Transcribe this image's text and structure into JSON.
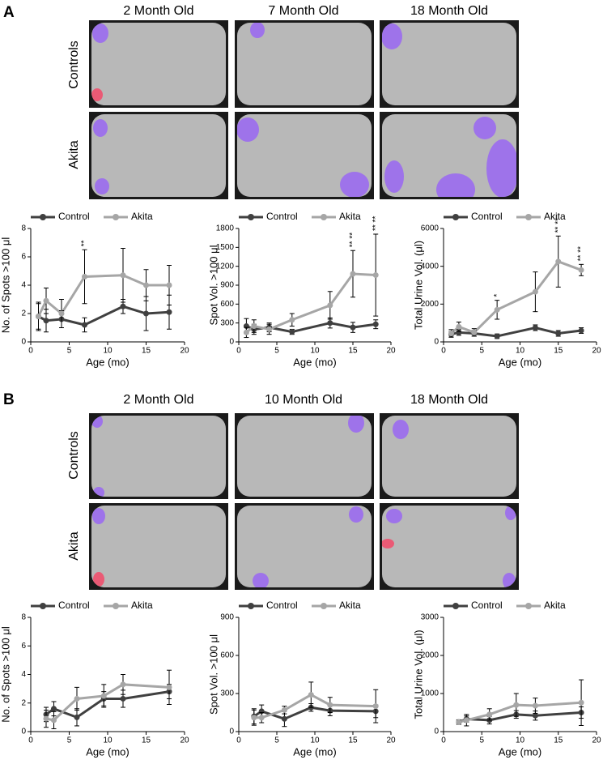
{
  "panels": [
    {
      "label": "A",
      "columns": [
        "2 Month Old",
        "7 Month Old",
        "18 Month Old"
      ],
      "rows": [
        "Controls",
        "Akita"
      ]
    },
    {
      "label": "B",
      "columns": [
        "2 Month Old",
        "10 Month Old",
        "18 Month Old"
      ],
      "rows": [
        "Controls",
        "Akita"
      ]
    }
  ],
  "chart_data": [
    {
      "type": "line",
      "ylabel": "No. of Spots >100 μl",
      "xlabel": "Age (mo)",
      "legend": "top",
      "x": [
        1,
        2,
        4,
        7,
        12,
        15,
        18
      ],
      "xlim": [
        0,
        20
      ],
      "xticks": [
        0,
        5,
        10,
        15,
        20
      ],
      "ylim": [
        0,
        8
      ],
      "yticks": [
        0,
        2,
        4,
        6,
        8
      ],
      "series": [
        {
          "name": "Control",
          "color": "#404040",
          "values": [
            1.8,
            1.5,
            1.6,
            1.2,
            2.5,
            2.0,
            2.1
          ],
          "errors": [
            1.0,
            0.8,
            0.6,
            0.5,
            0.5,
            1.2,
            1.2
          ]
        },
        {
          "name": "Akita",
          "color": "#a6a6a6",
          "values": [
            1.8,
            2.9,
            2.0,
            4.6,
            4.7,
            4.0,
            4.0
          ],
          "errors": [
            0.9,
            0.9,
            1.0,
            1.9,
            1.9,
            1.1,
            1.4
          ]
        }
      ],
      "annotations": [
        {
          "text": "**",
          "x": 7
        }
      ]
    },
    {
      "type": "line",
      "ylabel": "Spot Vol. >100 μl",
      "xlabel": "Age (mo)",
      "legend": "top",
      "x": [
        1,
        2,
        4,
        7,
        12,
        15,
        18
      ],
      "xlim": [
        0,
        20
      ],
      "xticks": [
        0,
        5,
        10,
        15,
        20
      ],
      "ylim": [
        0,
        1800
      ],
      "yticks": [
        0,
        300,
        600,
        900,
        1200,
        1500,
        1800
      ],
      "series": [
        {
          "name": "Control",
          "color": "#404040",
          "values": [
            250,
            200,
            230,
            160,
            300,
            230,
            280
          ],
          "errors": [
            120,
            80,
            70,
            40,
            80,
            80,
            70
          ]
        },
        {
          "name": "Akita",
          "color": "#a6a6a6",
          "values": [
            150,
            250,
            200,
            350,
            580,
            1080,
            1060
          ],
          "errors": [
            80,
            100,
            80,
            100,
            220,
            370,
            650
          ]
        }
      ],
      "annotations": [
        {
          "text": "** **",
          "x": 15
        },
        {
          "text": "** **",
          "x": 18
        }
      ]
    },
    {
      "type": "line",
      "ylabel": "Total Urine Vol. (μl)",
      "xlabel": "Age (mo)",
      "legend": "top",
      "x": [
        1,
        2,
        4,
        7,
        12,
        15,
        18
      ],
      "xlim": [
        0,
        20
      ],
      "xticks": [
        0,
        5,
        10,
        15,
        20
      ],
      "ylim": [
        0,
        6000
      ],
      "yticks": [
        0,
        2000,
        4000,
        6000
      ],
      "series": [
        {
          "name": "Control",
          "color": "#404040",
          "values": [
            400,
            500,
            450,
            300,
            750,
            450,
            600
          ],
          "errors": [
            150,
            150,
            150,
            120,
            150,
            150,
            150
          ]
        },
        {
          "name": "Akita",
          "color": "#a6a6a6",
          "values": [
            450,
            800,
            500,
            1700,
            2650,
            4250,
            3800
          ],
          "errors": [
            200,
            250,
            200,
            500,
            1050,
            1350,
            300
          ]
        }
      ],
      "annotations": [
        {
          "text": "*",
          "x": 7
        },
        {
          "text": "** **",
          "x": 15
        },
        {
          "text": "** **",
          "x": 18
        }
      ]
    },
    {
      "type": "line",
      "ylabel": "No. of Spots >100 μl",
      "xlabel": "Age (mo)",
      "legend": "top",
      "x": [
        2,
        3,
        6,
        9.5,
        12,
        18
      ],
      "xlim": [
        0,
        20
      ],
      "xticks": [
        0,
        5,
        10,
        15,
        20
      ],
      "ylim": [
        0,
        8
      ],
      "yticks": [
        0,
        2,
        4,
        6,
        8
      ],
      "series": [
        {
          "name": "Control",
          "color": "#404040",
          "values": [
            1.2,
            1.6,
            1.0,
            2.3,
            2.3,
            2.8
          ],
          "errors": [
            0.5,
            0.5,
            0.6,
            0.5,
            0.6,
            0.5
          ]
        },
        {
          "name": "Akita",
          "color": "#a6a6a6",
          "values": [
            0.9,
            0.8,
            2.3,
            2.5,
            3.3,
            3.1
          ],
          "errors": [
            0.6,
            0.6,
            0.8,
            0.8,
            0.7,
            1.2
          ]
        }
      ]
    },
    {
      "type": "line",
      "ylabel": "Spot Vol. >100 μl",
      "xlabel": "Age (mo)",
      "legend": "top",
      "x": [
        2,
        3,
        6,
        9.5,
        12,
        18
      ],
      "xlim": [
        0,
        20
      ],
      "xticks": [
        0,
        5,
        10,
        15,
        20
      ],
      "ylim": [
        0,
        900
      ],
      "yticks": [
        0,
        300,
        600,
        900
      ],
      "series": [
        {
          "name": "Control",
          "color": "#404040",
          "values": [
            120,
            160,
            100,
            190,
            165,
            160
          ],
          "errors": [
            60,
            50,
            60,
            30,
            40,
            50
          ]
        },
        {
          "name": "Akita",
          "color": "#a6a6a6",
          "values": [
            110,
            110,
            170,
            290,
            210,
            200
          ],
          "errors": [
            60,
            40,
            30,
            100,
            60,
            130
          ]
        }
      ]
    },
    {
      "type": "line",
      "ylabel": "Total Urine Vol. (μl)",
      "xlabel": "Age (mo)",
      "legend": "top",
      "x": [
        2,
        3,
        6,
        9.5,
        12,
        18
      ],
      "xlim": [
        0,
        20
      ],
      "xticks": [
        0,
        5,
        10,
        15,
        20
      ],
      "ylim": [
        0,
        3000
      ],
      "yticks": [
        0,
        1000,
        2000,
        3000
      ],
      "series": [
        {
          "name": "Control",
          "color": "#404040",
          "values": [
            250,
            330,
            300,
            450,
            420,
            500
          ],
          "errors": [
            60,
            80,
            100,
            100,
            120,
            150
          ]
        },
        {
          "name": "Akita",
          "color": "#a6a6a6",
          "values": [
            250,
            300,
            450,
            700,
            680,
            760
          ],
          "errors": [
            50,
            150,
            150,
            300,
            200,
            600
          ]
        }
      ]
    }
  ]
}
